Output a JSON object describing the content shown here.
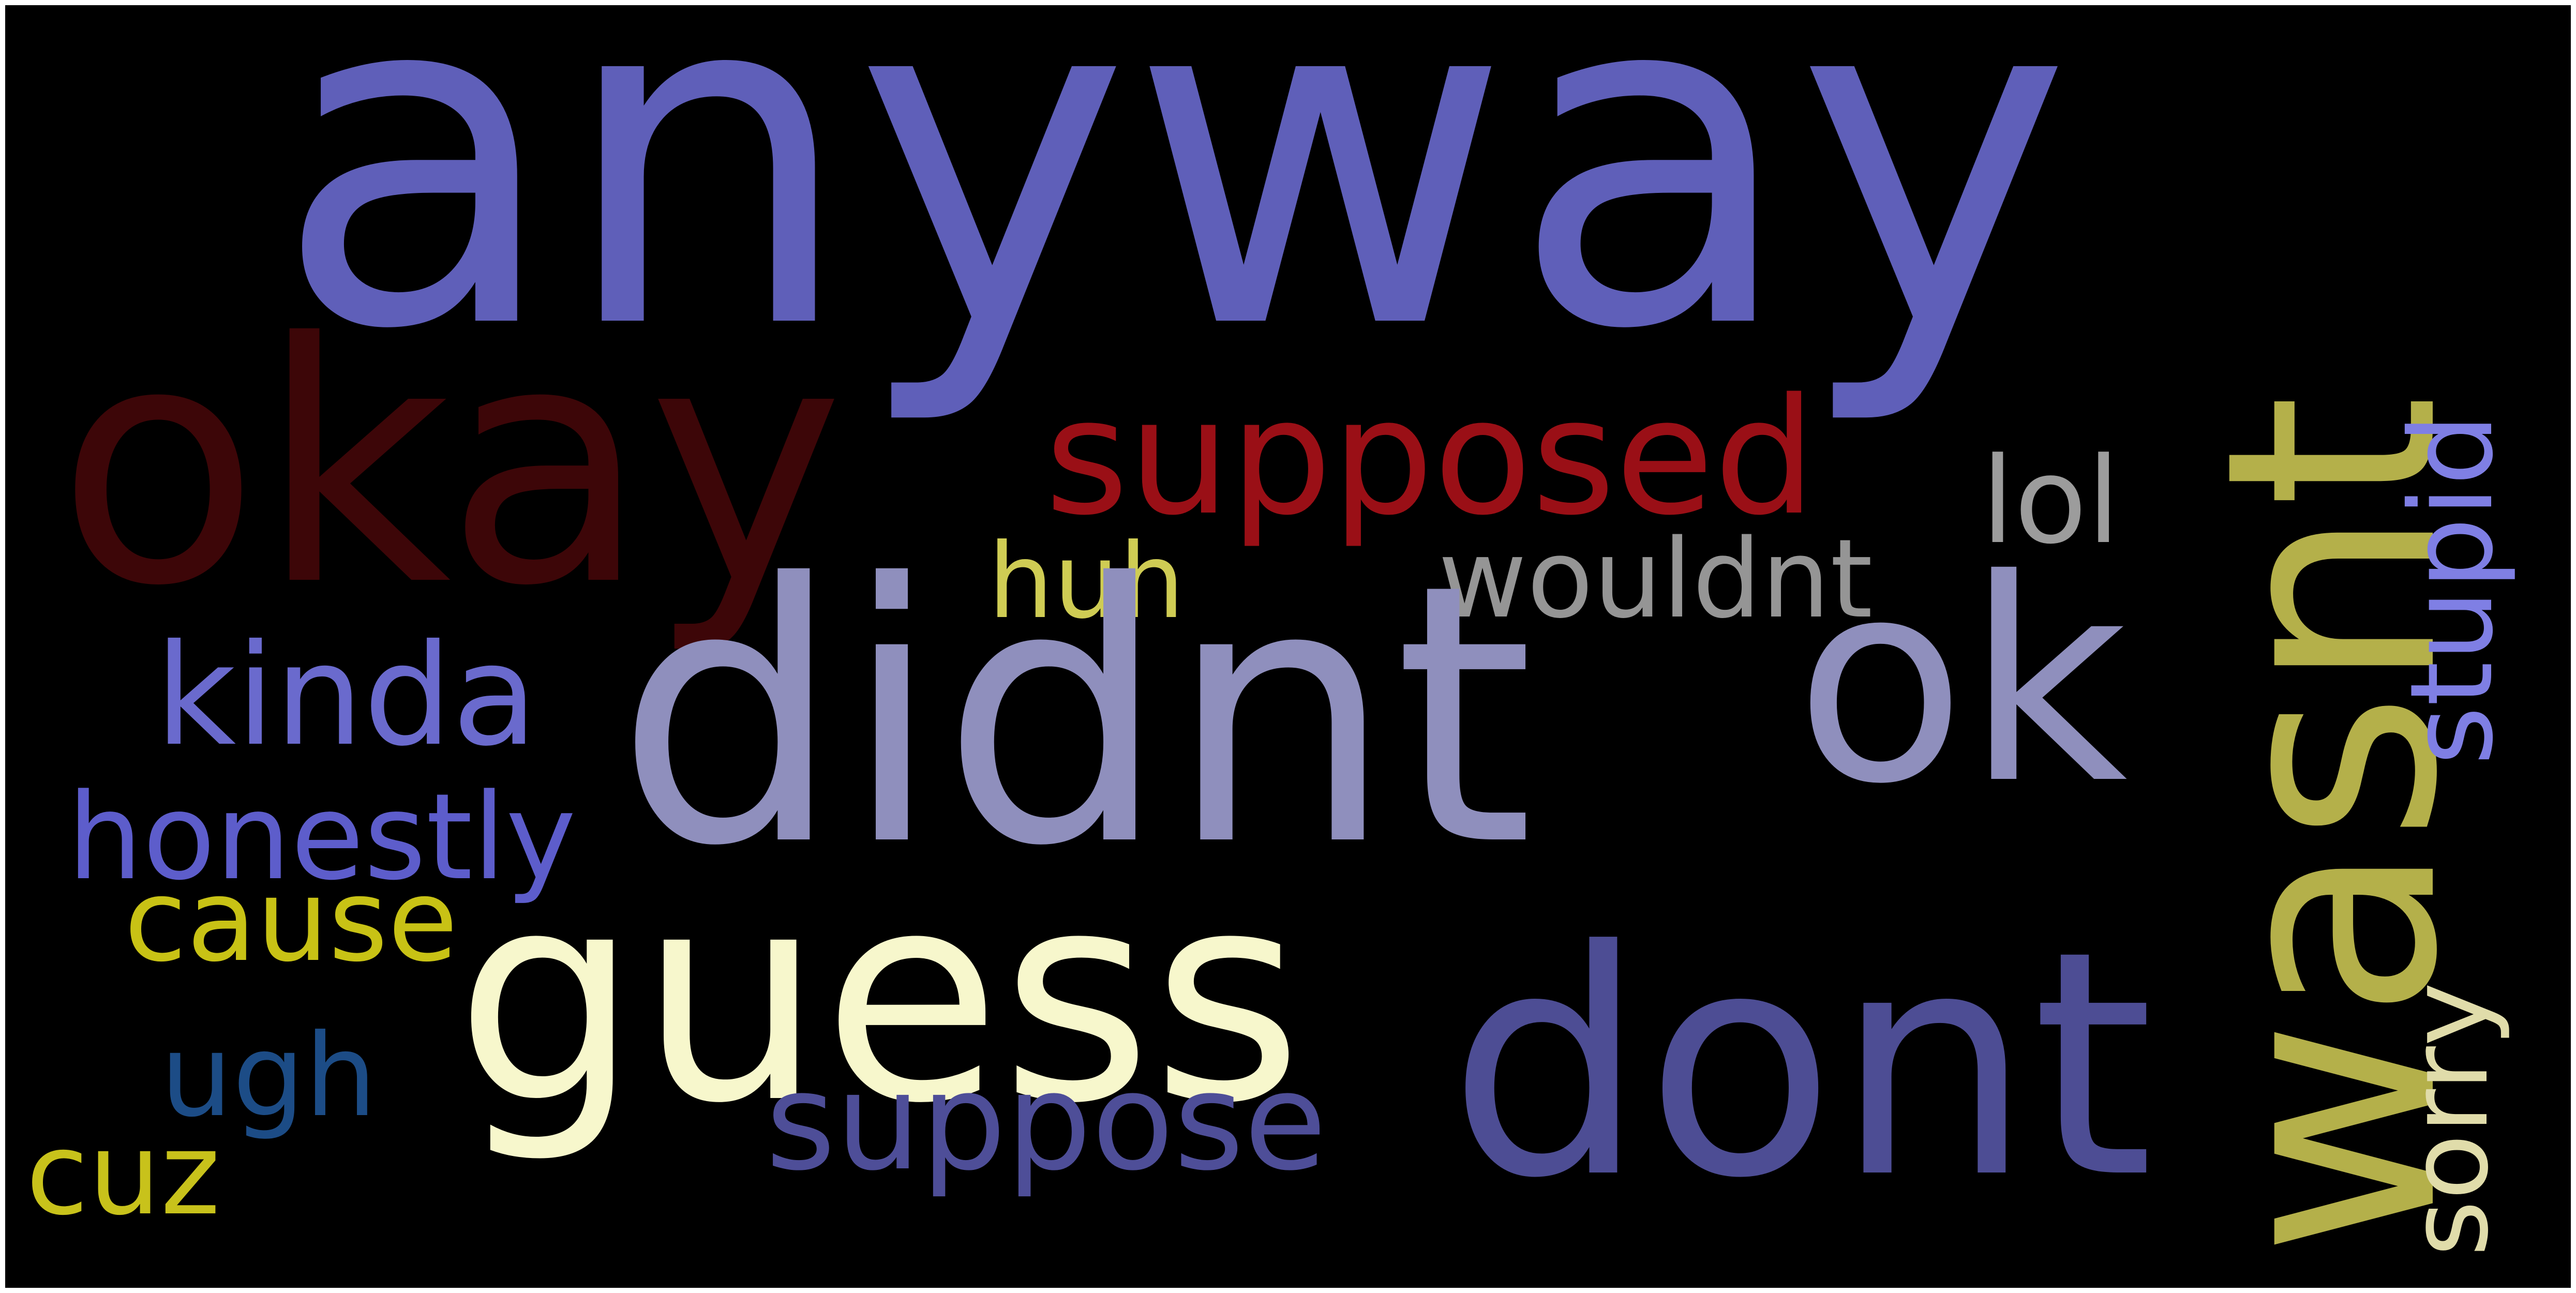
{
  "cloud": {
    "words": {
      "anyway": {
        "text": "anyway",
        "color": "#5f5fb9"
      },
      "okay": {
        "text": "okay",
        "color": "#3d0608"
      },
      "wasnt": {
        "text": "wasnt",
        "color": "#b4b04a"
      },
      "supposed": {
        "text": "supposed",
        "color": "#9a0f16"
      },
      "stupid": {
        "text": "stupid",
        "color": "#7f7fe4"
      },
      "lol": {
        "text": "lol",
        "color": "#9c9c9c"
      },
      "huh": {
        "text": "huh",
        "color": "#cfcc54"
      },
      "wouldnt": {
        "text": "wouldnt",
        "color": "#959595"
      },
      "kinda": {
        "text": "kinda",
        "color": "#6a6acd"
      },
      "didnt": {
        "text": "didnt",
        "color": "#8f8fbd"
      },
      "ok": {
        "text": "ok",
        "color": "#8f8fbd"
      },
      "honestly": {
        "text": "honestly",
        "color": "#5d5dcb"
      },
      "cause": {
        "text": "cause",
        "color": "#c8c215"
      },
      "sorry": {
        "text": "sorry",
        "color": "#e0dcaa"
      },
      "guess": {
        "text": "guess",
        "color": "#f7f7cc"
      },
      "dont": {
        "text": "dont",
        "color": "#4d4d94"
      },
      "ugh": {
        "text": "ugh",
        "color": "#1c4c86"
      },
      "suppose": {
        "text": "suppose",
        "color": "#4e4e98"
      },
      "cuz": {
        "text": "cuz",
        "color": "#c8c21b"
      }
    }
  }
}
